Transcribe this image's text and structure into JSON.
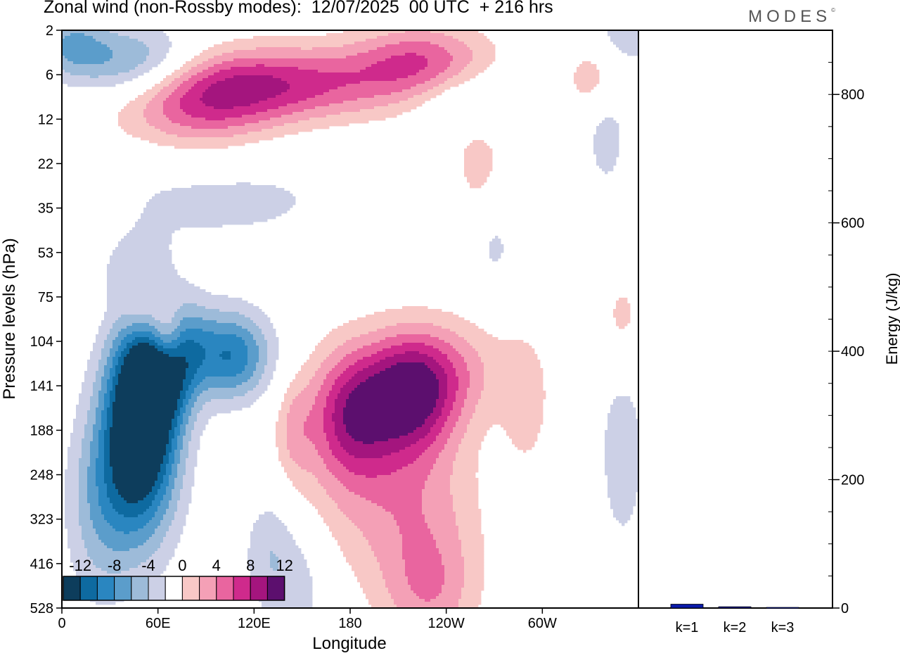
{
  "title": "Zonal wind (non-Rossby modes):  12/07/2025  00 UTC  + 216 hrs",
  "brand": "MODES",
  "brand_mark": "©",
  "colors": {
    "neg": [
      "#0d3d5c",
      "#0e6aa0",
      "#2a86c0",
      "#5b9dcb",
      "#9dbbd9",
      "#ccd0e6"
    ],
    "zero": "#ffffff",
    "pos": [
      "#f8c8c6",
      "#f4a0b6",
      "#e9659f",
      "#cf2a8c",
      "#a4157e",
      "#5c0f6e"
    ],
    "bar": "#0a1aa8"
  },
  "chart_data": [
    {
      "type": "heatmap",
      "title": "Zonal wind (non-Rossby modes):  12/07/2025  00 UTC  + 216 hrs",
      "xlabel": "Longitude",
      "ylabel": "Pressure levels (hPa)",
      "x_ticks": [
        "0",
        "60E",
        "120E",
        "180",
        "120W",
        "60W"
      ],
      "x_tick_deg": [
        0,
        60,
        120,
        180,
        240,
        300
      ],
      "xlim": [
        0,
        360
      ],
      "y_levels": [
        2,
        6,
        12,
        22,
        35,
        53,
        75,
        104,
        141,
        188,
        248,
        323,
        416,
        528
      ],
      "colorbar": {
        "labels": [
          "-12",
          "-8",
          "-4",
          "0",
          "4",
          "8",
          "12"
        ],
        "levels": [
          -14,
          -12,
          -10,
          -8,
          -6,
          -4,
          -2,
          2,
          4,
          6,
          8,
          10,
          12,
          14
        ]
      },
      "features": [
        {
          "lon": 50,
          "level_index": 8.5,
          "value": -16,
          "sx": 16,
          "sy": 1.4
        },
        {
          "lon": 66,
          "level_index": 7.4,
          "value": -9,
          "sx": 14,
          "sy": 0.9
        },
        {
          "lon": 42,
          "level_index": 10.3,
          "value": -7,
          "sx": 20,
          "sy": 1.4
        },
        {
          "lon": 108,
          "level_index": 7.4,
          "value": -7,
          "sx": 16,
          "sy": 0.7
        },
        {
          "lon": 86,
          "level_index": 7.1,
          "value": -4,
          "sx": 28,
          "sy": 0.7
        },
        {
          "lon": 130,
          "level_index": 11.8,
          "value": -4,
          "sx": 12,
          "sy": 1.0
        },
        {
          "lon": 152,
          "level_index": 12.5,
          "value": -2.5,
          "sx": 12,
          "sy": 1.0
        },
        {
          "lon": 20,
          "level_index": 11.0,
          "value": -2.5,
          "sx": 14,
          "sy": 1.6
        },
        {
          "lon": 35,
          "level_index": 5.3,
          "value": -3,
          "sx": 18,
          "sy": 0.6
        },
        {
          "lon": 50,
          "level_index": 6.4,
          "value": 4,
          "sx": 9,
          "sy": 0.6
        },
        {
          "lon": 65,
          "level_index": 6.9,
          "value": 9,
          "sx": 8,
          "sy": 0.6
        },
        {
          "lon": 180,
          "level_index": 8.6,
          "value": 8,
          "sx": 18,
          "sy": 1.0
        },
        {
          "lon": 218,
          "level_index": 8.2,
          "value": 10,
          "sx": 20,
          "sy": 0.9
        },
        {
          "lon": 200,
          "level_index": 9.8,
          "value": 5,
          "sx": 36,
          "sy": 1.6
        },
        {
          "lon": 228,
          "level_index": 11.8,
          "value": 3.5,
          "sx": 24,
          "sy": 1.2
        },
        {
          "lon": 240,
          "level_index": 7.6,
          "value": 4,
          "sx": 30,
          "sy": 0.8
        },
        {
          "lon": 290,
          "level_index": 8.4,
          "value": 3,
          "sx": 10,
          "sy": 1.0
        },
        {
          "lon": 230,
          "level_index": 12.8,
          "value": 3,
          "sx": 20,
          "sy": 0.8
        },
        {
          "lon": 145,
          "level_index": 9.0,
          "value": 3,
          "sx": 8,
          "sy": 0.8
        },
        {
          "lon": 350,
          "level_index": 9.5,
          "value": -3,
          "sx": 12,
          "sy": 1.8
        },
        {
          "lon": 350,
          "level_index": 6.5,
          "value": 3,
          "sx": 10,
          "sy": 0.8
        },
        {
          "lon": 130,
          "level_index": 1.2,
          "value": 9,
          "sx": 60,
          "sy": 0.6
        },
        {
          "lon": 85,
          "level_index": 1.8,
          "value": 6,
          "sx": 35,
          "sy": 0.7
        },
        {
          "lon": 45,
          "level_index": 0.8,
          "value": -8,
          "sx": 30,
          "sy": 0.6
        },
        {
          "lon": 5,
          "level_index": 0.3,
          "value": -5,
          "sx": 16,
          "sy": 0.5
        },
        {
          "lon": 255,
          "level_index": 1.5,
          "value": -4,
          "sx": 25,
          "sy": 0.5
        },
        {
          "lon": 225,
          "level_index": 0.7,
          "value": 7,
          "sx": 30,
          "sy": 0.6
        },
        {
          "lon": 332,
          "level_index": 1.0,
          "value": 4,
          "sx": 12,
          "sy": 0.6
        },
        {
          "lon": 350,
          "level_index": 0.2,
          "value": -3,
          "sx": 20,
          "sy": 0.5
        },
        {
          "lon": 340,
          "level_index": 2.3,
          "value": -3,
          "sx": 10,
          "sy": 1.0
        },
        {
          "lon": 260,
          "level_index": 3.0,
          "value": 3,
          "sx": 12,
          "sy": 1.0
        },
        {
          "lon": 20,
          "level_index": 4.5,
          "value": 2.5,
          "sx": 14,
          "sy": 1.2
        },
        {
          "lon": 100,
          "level_index": 3.8,
          "value": -2.5,
          "sx": 70,
          "sy": 0.9
        },
        {
          "lon": 270,
          "level_index": 4.8,
          "value": -2.5,
          "sx": 10,
          "sy": 0.8
        }
      ]
    },
    {
      "type": "bar",
      "categories": [
        "k=1",
        "k=2",
        "k=3"
      ],
      "values": [
        6,
        2,
        1
      ],
      "ylabel": "Energy (J/kg)",
      "ylim": [
        0,
        900
      ],
      "y_ticks": [
        0,
        200,
        400,
        600,
        800
      ],
      "grid": false
    }
  ]
}
